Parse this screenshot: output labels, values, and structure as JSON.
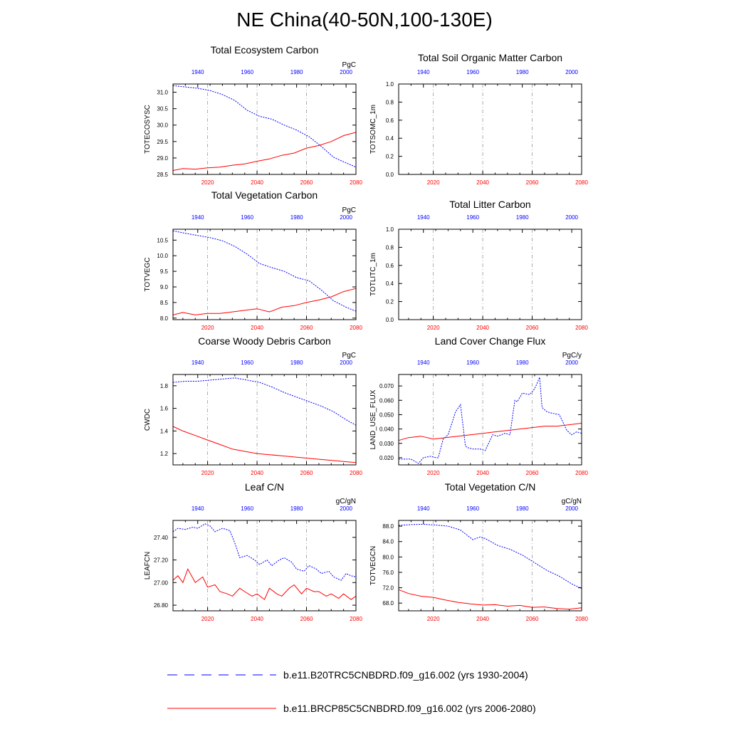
{
  "title": "NE China(40-50N,100-130E)",
  "colors": {
    "historical": "#0000ff",
    "future": "#ff0000",
    "axis": "#000000",
    "gridline": "#999999"
  },
  "legend": [
    {
      "label": "b.e11.B20TRC5CNBDRD.f09_g16.002 (yrs 1930-2004)",
      "color": "#0000ff",
      "style": "dashed"
    },
    {
      "label": "b.e11.BRCP85C5CNBDRD.f09_g16.002 (yrs 2006-2080)",
      "color": "#ff0000",
      "style": "solid"
    }
  ],
  "chart_data": [
    {
      "type": "line",
      "title": "Total Ecosystem Carbon",
      "ylabel": "TOTECOSYSC",
      "units": "PgC",
      "ylim": [
        28.5,
        31.25
      ],
      "yticks": [
        "28.5",
        "29.0",
        "29.5",
        "30.0",
        "30.5",
        "31.0"
      ],
      "top_axis": {
        "range": [
          1930,
          2004
        ],
        "ticks": [
          "1940",
          "1960",
          "1980",
          "2000"
        ]
      },
      "bottom_axis": {
        "range": [
          2006,
          2080
        ],
        "ticks": [
          "2020",
          "2040",
          "2060",
          "2080"
        ]
      },
      "series": [
        {
          "axis": "top",
          "x": [
            1930,
            1940,
            1945,
            1950,
            1955,
            1960,
            1965,
            1970,
            1975,
            1980,
            1985,
            1990,
            1995,
            2000,
            2004
          ],
          "y": [
            31.2,
            31.12,
            31.05,
            30.93,
            30.75,
            30.45,
            30.27,
            30.18,
            30.0,
            29.85,
            29.65,
            29.35,
            29.02,
            28.85,
            28.72
          ]
        },
        {
          "axis": "bottom",
          "x": [
            2006,
            2010,
            2015,
            2020,
            2025,
            2030,
            2035,
            2040,
            2045,
            2050,
            2055,
            2060,
            2065,
            2070,
            2075,
            2080
          ],
          "y": [
            28.62,
            28.68,
            28.66,
            28.7,
            28.72,
            28.78,
            28.82,
            28.9,
            28.97,
            29.08,
            29.15,
            29.3,
            29.38,
            29.5,
            29.68,
            29.78
          ]
        }
      ]
    },
    {
      "type": "line",
      "title": "Total Soil Organic Matter Carbon",
      "ylabel": "TOTSOMC_1m",
      "units": "",
      "ylim": [
        0,
        1
      ],
      "yticks": [
        "0.0",
        "0.2",
        "0.4",
        "0.6",
        "0.8",
        "1.0"
      ],
      "top_axis": {
        "range": [
          1930,
          2004
        ],
        "ticks": [
          "1940",
          "1960",
          "1980",
          "2000"
        ]
      },
      "bottom_axis": {
        "range": [
          2006,
          2080
        ],
        "ticks": [
          "2020",
          "2040",
          "2060",
          "2080"
        ]
      },
      "series": []
    },
    {
      "type": "line",
      "title": "Total Vegetation Carbon",
      "ylabel": "TOTVEGC",
      "units": "PgC",
      "ylim": [
        7.95,
        10.85
      ],
      "yticks": [
        "8.0",
        "8.5",
        "9.0",
        "9.5",
        "10.0",
        "10.5"
      ],
      "top_axis": {
        "range": [
          1930,
          2004
        ],
        "ticks": [
          "1940",
          "1960",
          "1980",
          "2000"
        ]
      },
      "bottom_axis": {
        "range": [
          2006,
          2080
        ],
        "ticks": [
          "2020",
          "2040",
          "2060",
          "2080"
        ]
      },
      "series": [
        {
          "axis": "top",
          "x": [
            1930,
            1935,
            1940,
            1945,
            1950,
            1955,
            1960,
            1965,
            1970,
            1975,
            1980,
            1985,
            1990,
            1995,
            2000,
            2004
          ],
          "y": [
            10.8,
            10.72,
            10.65,
            10.58,
            10.48,
            10.3,
            10.05,
            9.75,
            9.62,
            9.5,
            9.3,
            9.2,
            8.9,
            8.55,
            8.35,
            8.22
          ]
        },
        {
          "axis": "bottom",
          "x": [
            2006,
            2010,
            2015,
            2020,
            2025,
            2030,
            2035,
            2040,
            2045,
            2050,
            2055,
            2060,
            2065,
            2070,
            2075,
            2080
          ],
          "y": [
            8.1,
            8.18,
            8.1,
            8.15,
            8.15,
            8.2,
            8.25,
            8.3,
            8.2,
            8.35,
            8.4,
            8.5,
            8.58,
            8.68,
            8.85,
            8.95
          ]
        }
      ]
    },
    {
      "type": "line",
      "title": "Total Litter Carbon",
      "ylabel": "TOTLITC_1m",
      "units": "",
      "ylim": [
        0,
        1
      ],
      "yticks": [
        "0.0",
        "0.2",
        "0.4",
        "0.6",
        "0.8",
        "1.0"
      ],
      "top_axis": {
        "range": [
          1930,
          2004
        ],
        "ticks": [
          "1940",
          "1960",
          "1980",
          "2000"
        ]
      },
      "bottom_axis": {
        "range": [
          2006,
          2080
        ],
        "ticks": [
          "2020",
          "2040",
          "2060",
          "2080"
        ]
      },
      "series": []
    },
    {
      "type": "line",
      "title": "Coarse Woody Debris Carbon",
      "ylabel": "CWDC",
      "units": "PgC",
      "ylim": [
        1.1,
        1.9
      ],
      "yticks": [
        "1.2",
        "1.4",
        "1.6",
        "1.8"
      ],
      "top_axis": {
        "range": [
          1930,
          2004
        ],
        "ticks": [
          "1940",
          "1960",
          "1980",
          "2000"
        ]
      },
      "bottom_axis": {
        "range": [
          2006,
          2080
        ],
        "ticks": [
          "2020",
          "2040",
          "2060",
          "2080"
        ]
      },
      "series": [
        {
          "axis": "top",
          "x": [
            1930,
            1935,
            1940,
            1945,
            1950,
            1955,
            1960,
            1965,
            1970,
            1975,
            1980,
            1985,
            1990,
            1995,
            2000,
            2004
          ],
          "y": [
            1.83,
            1.84,
            1.84,
            1.85,
            1.86,
            1.87,
            1.85,
            1.83,
            1.79,
            1.74,
            1.7,
            1.66,
            1.62,
            1.57,
            1.5,
            1.45
          ]
        },
        {
          "axis": "bottom",
          "x": [
            2006,
            2010,
            2015,
            2020,
            2025,
            2030,
            2035,
            2040,
            2045,
            2050,
            2055,
            2060,
            2065,
            2070,
            2075,
            2080
          ],
          "y": [
            1.44,
            1.4,
            1.36,
            1.32,
            1.28,
            1.24,
            1.22,
            1.2,
            1.19,
            1.18,
            1.17,
            1.16,
            1.15,
            1.14,
            1.13,
            1.12
          ]
        }
      ]
    },
    {
      "type": "line",
      "title": "Land Cover Change Flux",
      "ylabel": "LAND_USE_FLUX",
      "units": "PgC/y",
      "ylim": [
        0.015,
        0.078
      ],
      "yticks": [
        "0.020",
        "0.030",
        "0.040",
        "0.050",
        "0.060",
        "0.070"
      ],
      "top_axis": {
        "range": [
          1930,
          2004
        ],
        "ticks": [
          "1940",
          "1960",
          "1980",
          "2000"
        ]
      },
      "bottom_axis": {
        "range": [
          2006,
          2080
        ],
        "ticks": [
          "2020",
          "2040",
          "2060",
          "2080"
        ]
      },
      "series": [
        {
          "axis": "top",
          "x": [
            1930,
            1935,
            1938,
            1940,
            1943,
            1945,
            1946,
            1948,
            1950,
            1953,
            1955,
            1957,
            1958,
            1960,
            1963,
            1965,
            1968,
            1970,
            1973,
            1975,
            1977,
            1978,
            1980,
            1983,
            1985,
            1987,
            1988,
            1990,
            1992,
            1995,
            1998,
            2000,
            2002,
            2004
          ],
          "y": [
            0.019,
            0.019,
            0.016,
            0.02,
            0.021,
            0.02,
            0.02,
            0.033,
            0.036,
            0.052,
            0.057,
            0.028,
            0.027,
            0.026,
            0.026,
            0.025,
            0.036,
            0.035,
            0.037,
            0.036,
            0.06,
            0.059,
            0.065,
            0.064,
            0.068,
            0.076,
            0.055,
            0.052,
            0.051,
            0.05,
            0.039,
            0.036,
            0.038,
            0.037
          ]
        },
        {
          "axis": "bottom",
          "x": [
            2006,
            2010,
            2015,
            2020,
            2025,
            2030,
            2035,
            2040,
            2045,
            2050,
            2055,
            2060,
            2065,
            2070,
            2075,
            2080
          ],
          "y": [
            0.032,
            0.034,
            0.035,
            0.033,
            0.034,
            0.035,
            0.036,
            0.037,
            0.038,
            0.039,
            0.04,
            0.041,
            0.042,
            0.042,
            0.043,
            0.044
          ]
        }
      ]
    },
    {
      "type": "line",
      "title": "Leaf C/N",
      "ylabel": "LEAFCN",
      "units": "gC/gN",
      "ylim": [
        26.75,
        27.55
      ],
      "yticks": [
        "26.80",
        "27.00",
        "27.20",
        "27.40"
      ],
      "top_axis": {
        "range": [
          1930,
          2004
        ],
        "ticks": [
          "1940",
          "1960",
          "1980",
          "2000"
        ]
      },
      "bottom_axis": {
        "range": [
          2006,
          2080
        ],
        "ticks": [
          "2020",
          "2040",
          "2060",
          "2080"
        ]
      },
      "series": [
        {
          "axis": "top",
          "x": [
            1930,
            1932,
            1935,
            1938,
            1940,
            1943,
            1945,
            1947,
            1950,
            1953,
            1955,
            1957,
            1960,
            1963,
            1965,
            1968,
            1970,
            1973,
            1975,
            1978,
            1980,
            1983,
            1985,
            1988,
            1990,
            1993,
            1995,
            1998,
            2000,
            2002,
            2004
          ],
          "y": [
            27.45,
            27.48,
            27.47,
            27.49,
            27.48,
            27.52,
            27.5,
            27.45,
            27.48,
            27.46,
            27.35,
            27.22,
            27.24,
            27.2,
            27.16,
            27.2,
            27.15,
            27.2,
            27.22,
            27.18,
            27.12,
            27.1,
            27.15,
            27.12,
            27.08,
            27.1,
            27.05,
            27.02,
            27.08,
            27.06,
            27.05
          ]
        },
        {
          "axis": "bottom",
          "x": [
            2006,
            2008,
            2010,
            2012,
            2015,
            2018,
            2020,
            2023,
            2025,
            2028,
            2030,
            2033,
            2035,
            2038,
            2040,
            2043,
            2045,
            2048,
            2050,
            2053,
            2055,
            2058,
            2060,
            2063,
            2065,
            2068,
            2070,
            2073,
            2075,
            2078,
            2080
          ],
          "y": [
            27.02,
            27.06,
            27.0,
            27.12,
            27.0,
            27.05,
            26.96,
            26.98,
            26.92,
            26.9,
            26.88,
            26.95,
            26.92,
            26.88,
            26.9,
            26.85,
            26.95,
            26.9,
            26.88,
            26.95,
            26.98,
            26.9,
            26.95,
            26.92,
            26.92,
            26.88,
            26.9,
            26.86,
            26.9,
            26.85,
            26.88
          ]
        }
      ]
    },
    {
      "type": "line",
      "title": "Total Vegetation C/N",
      "ylabel": "TOTVEGCN",
      "units": "gC/gN",
      "ylim": [
        66,
        89.5
      ],
      "yticks": [
        "68.0",
        "72.0",
        "76.0",
        "80.0",
        "84.0",
        "88.0"
      ],
      "top_axis": {
        "range": [
          1930,
          2004
        ],
        "ticks": [
          "1940",
          "1960",
          "1980",
          "2000"
        ]
      },
      "bottom_axis": {
        "range": [
          2006,
          2080
        ],
        "ticks": [
          "2020",
          "2040",
          "2060",
          "2080"
        ]
      },
      "series": [
        {
          "axis": "top",
          "x": [
            1930,
            1935,
            1940,
            1945,
            1950,
            1955,
            1958,
            1960,
            1963,
            1965,
            1970,
            1975,
            1980,
            1985,
            1990,
            1995,
            2000,
            2004
          ],
          "y": [
            88.2,
            88.4,
            88.5,
            88.3,
            88.0,
            87.0,
            85.5,
            84.5,
            85.2,
            84.8,
            83.0,
            82.0,
            80.5,
            78.5,
            76.5,
            75.0,
            73.0,
            71.8
          ]
        },
        {
          "axis": "bottom",
          "x": [
            2006,
            2010,
            2015,
            2020,
            2025,
            2030,
            2035,
            2040,
            2045,
            2050,
            2055,
            2060,
            2065,
            2070,
            2075,
            2080
          ],
          "y": [
            71.5,
            70.5,
            69.8,
            69.5,
            68.8,
            68.2,
            67.8,
            67.5,
            67.6,
            67.2,
            67.4,
            66.9,
            67.0,
            66.6,
            66.4,
            66.8
          ]
        }
      ]
    }
  ]
}
